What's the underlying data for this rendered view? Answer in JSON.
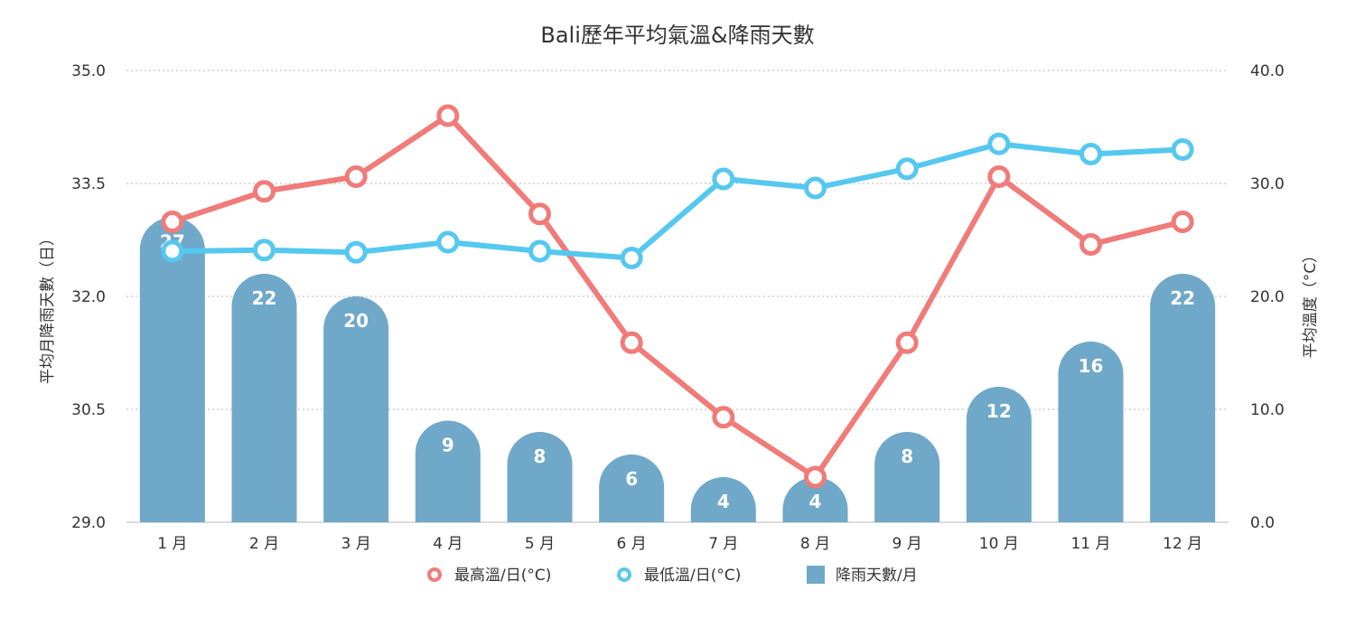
{
  "chart_data": {
    "type": "bar",
    "title": "Bali歷年平均氣溫&降雨天數",
    "categories": [
      "1 月",
      "2 月",
      "3 月",
      "4 月",
      "5 月",
      "6 月",
      "7 月",
      "8 月",
      "9 月",
      "10 月",
      "11 月",
      "12 月"
    ],
    "y_left": {
      "label": "平均月降雨天數（日）",
      "range": [
        29.0,
        35.0
      ],
      "ticks": [
        "29.0",
        "30.5",
        "32.0",
        "33.5",
        "35.0"
      ]
    },
    "y_right": {
      "label": "平均溫度（°C）",
      "range": [
        0,
        40
      ],
      "ticks": [
        "0.0",
        "10.0",
        "20.0",
        "30.0",
        "40.0"
      ]
    },
    "grid": true,
    "legend_position": "bottom-center",
    "series": [
      {
        "name": "最高溫/日(°C)",
        "type": "line",
        "axis": "right",
        "color": "#f07b78",
        "values": [
          26.6,
          29.3,
          30.6,
          36.0,
          27.3,
          15.9,
          9.3,
          4.0,
          15.9,
          30.6,
          24.6,
          26.6
        ]
      },
      {
        "name": "最低溫/日(°C)",
        "type": "line",
        "axis": "right",
        "color": "#55c8f0",
        "values": [
          24.0,
          24.1,
          23.9,
          24.8,
          24.0,
          23.4,
          30.4,
          29.6,
          31.3,
          33.5,
          32.6,
          33.0
        ]
      },
      {
        "name": "降雨天數/月",
        "type": "bar",
        "axis": "right",
        "color": "#6fa8c8",
        "values": [
          27,
          22,
          20,
          9,
          8,
          6,
          4,
          4,
          8,
          12,
          16,
          22
        ],
        "labels": [
          "27",
          "22",
          "20",
          "9",
          "8",
          "6",
          "4",
          "4",
          "8",
          "12",
          "16",
          "22"
        ]
      }
    ]
  }
}
